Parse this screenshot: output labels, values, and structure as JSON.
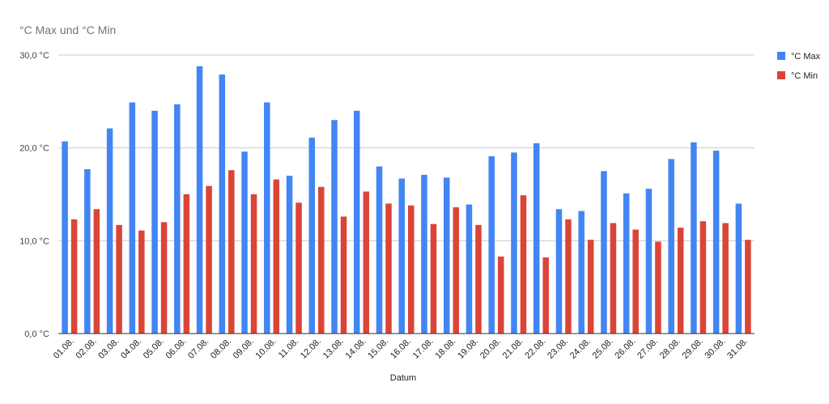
{
  "chart_data": {
    "type": "bar",
    "title": "°C Max und °C Min",
    "xlabel": "Datum",
    "ylabel": "",
    "ylim": [
      0,
      30
    ],
    "yticks": [
      {
        "value": 0,
        "label": "0,0 °C"
      },
      {
        "value": 10,
        "label": "10,0 °C"
      },
      {
        "value": 20,
        "label": "20,0 °C"
      },
      {
        "value": 30,
        "label": "30,0 °C"
      }
    ],
    "grid": true,
    "legend_position": "right",
    "categories": [
      "01.08.",
      "02.08.",
      "03.08.",
      "04.08.",
      "05.08.",
      "06.08.",
      "07.08.",
      "08.08.",
      "09.08.",
      "10.08.",
      "11.08.",
      "12.08.",
      "13.08.",
      "14.08.",
      "15.08.",
      "16.08.",
      "17.08.",
      "18.08.",
      "19.08.",
      "20.08.",
      "21.08.",
      "22.08.",
      "23.08.",
      "24.08.",
      "25.08.",
      "26.08.",
      "27.08.",
      "28.08.",
      "29.08.",
      "30.08.",
      "31.08."
    ],
    "series": [
      {
        "name": "°C Max",
        "color": "#4285f4",
        "values": [
          20.7,
          17.7,
          22.1,
          24.9,
          24.0,
          24.7,
          28.8,
          27.9,
          19.6,
          24.9,
          17.0,
          21.1,
          23.0,
          24.0,
          18.0,
          16.7,
          17.1,
          16.8,
          13.9,
          19.1,
          19.5,
          20.5,
          13.4,
          13.2,
          17.5,
          15.1,
          15.6,
          18.8,
          20.6,
          19.7,
          14.0
        ]
      },
      {
        "name": "°C Min",
        "color": "#db4437",
        "values": [
          12.3,
          13.4,
          11.7,
          11.1,
          12.0,
          15.0,
          15.9,
          17.6,
          15.0,
          16.6,
          14.1,
          15.8,
          12.6,
          15.3,
          14.0,
          13.8,
          11.8,
          13.6,
          11.7,
          8.3,
          14.9,
          8.2,
          12.3,
          10.1,
          11.9,
          11.2,
          9.9,
          11.4,
          12.1,
          11.9,
          10.1
        ]
      }
    ]
  }
}
